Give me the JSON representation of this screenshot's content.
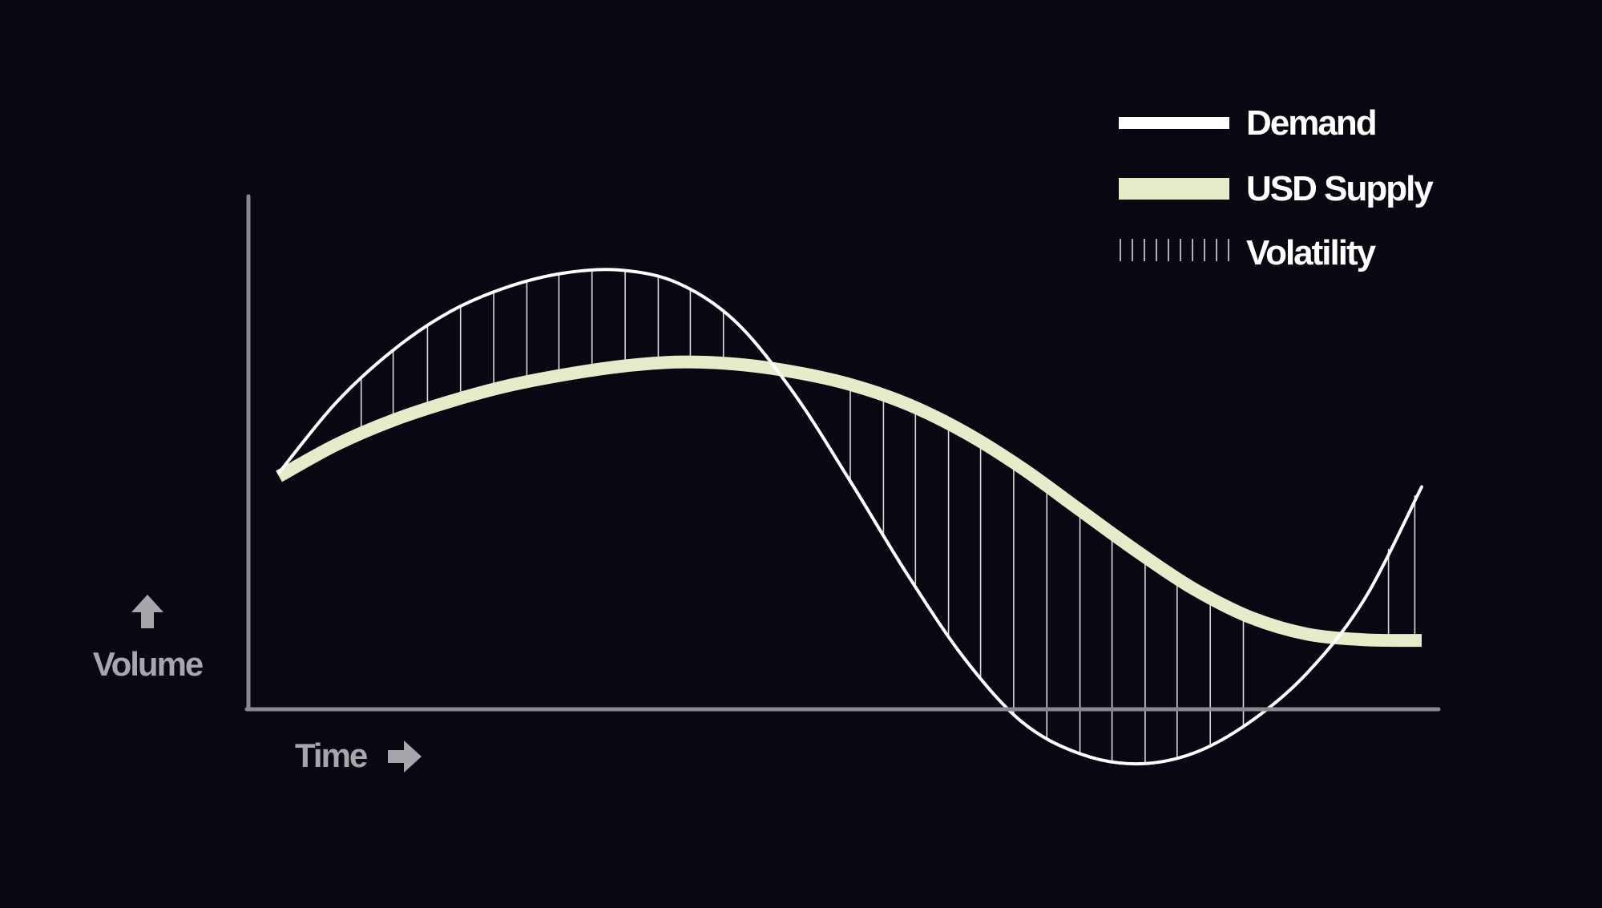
{
  "chart_data": {
    "type": "line",
    "title": "",
    "xlabel": "Time",
    "ylabel": "Volume",
    "legend_position": "top-right",
    "grid": false,
    "xlim": [
      0,
      100
    ],
    "ylim": [
      0,
      100
    ],
    "x": [
      0,
      5,
      10,
      15,
      20,
      25,
      30,
      35,
      40,
      45,
      50,
      55,
      60,
      65,
      70,
      75,
      80,
      85,
      90,
      95,
      100
    ],
    "series": [
      {
        "name": "Demand",
        "color": "#ffffff",
        "values": [
          52,
          62,
          69.5,
          75,
          78.5,
          80.5,
          80.9,
          79,
          73.5,
          63.5,
          50.8,
          37.5,
          25.5,
          16.5,
          12,
          10.5,
          12,
          16.5,
          23.5,
          34,
          50
        ]
      },
      {
        "name": "USD Supply",
        "color": "#e5ecc9",
        "values": [
          51.5,
          56,
          59.5,
          62.2,
          64.4,
          66,
          67.2,
          67.8,
          67.5,
          66.4,
          64.6,
          61.8,
          57.8,
          52.7,
          46.8,
          40.9,
          35.5,
          31.4,
          29,
          28.2,
          28.1
        ]
      }
    ],
    "volatility": {
      "name": "Volatility",
      "color": "#d9d9d9",
      "x": [
        7.2,
        10,
        13,
        15.9,
        18.8,
        21.7,
        24.5,
        27.4,
        30.3,
        33.2,
        36,
        38.9,
        50,
        52.9,
        55.7,
        58.6,
        61.4,
        64.3,
        67.2,
        70.1,
        72.9,
        75.8,
        78.6,
        81.5,
        84.4,
        97.1,
        99.4
      ]
    },
    "axis_color": "#8a8a8e",
    "background": "#070811"
  }
}
